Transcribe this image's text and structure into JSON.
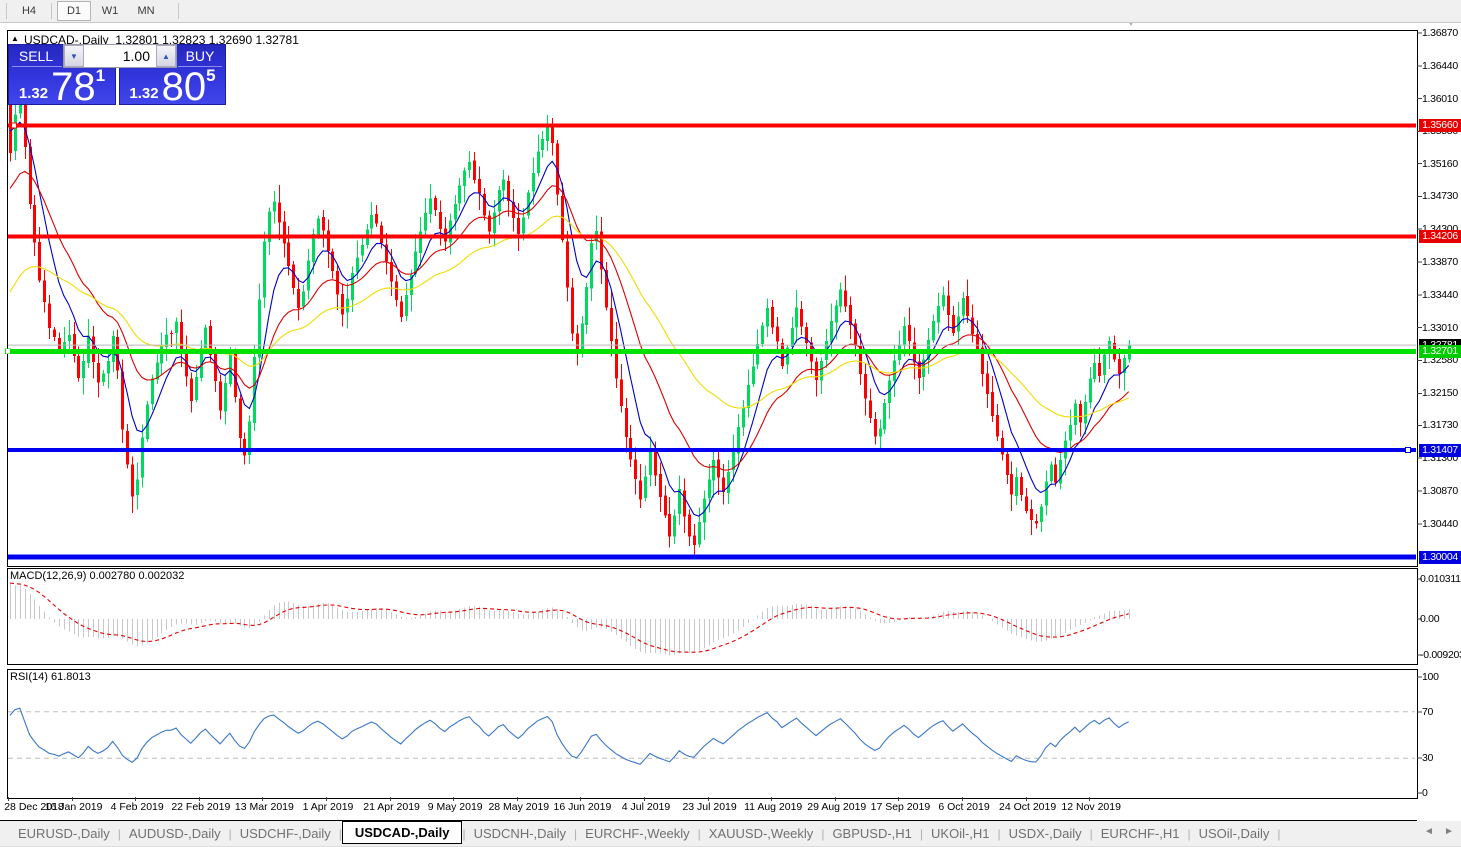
{
  "toolbar": {
    "timeframes": [
      {
        "label": "H4",
        "active": false
      },
      {
        "label": "D1",
        "active": true
      },
      {
        "label": "W1",
        "active": false
      },
      {
        "label": "MN",
        "active": false
      }
    ]
  },
  "chart_header": {
    "collapse_arrow": "▲",
    "shift_marker": "▼"
  },
  "trade_panel": {
    "sell_label": "SELL",
    "buy_label": "BUY",
    "volume": "1.00",
    "spinner_down": "▼",
    "spinner_up": "▲",
    "sell_price": {
      "big": "1.32",
      "main": "78",
      "sup": "1"
    },
    "buy_price": {
      "big": "1.32",
      "main": "80",
      "sup": "5"
    }
  },
  "chart_data": {
    "type": "candlestick",
    "title": "USDCAD-,Daily",
    "ohlc_display": "1.32801 1.32823 1.32690 1.32781",
    "up_color": "#00DA5E",
    "down_color": "#FF0000",
    "price_ticks": [
      "1.36870",
      "1.36440",
      "1.36010",
      "1.35580",
      "1.35160",
      "1.34730",
      "1.34300",
      "1.33870",
      "1.33440",
      "1.33010",
      "1.32580",
      "1.32150",
      "1.31730",
      "1.31300",
      "1.30870",
      "1.30440"
    ],
    "levels": [
      {
        "value": "1.35660",
        "price": 1.3566,
        "color": "#FF0000",
        "label_bg": "#E60000",
        "thickness": 4
      },
      {
        "value": "1.34206",
        "price": 1.34206,
        "color": "#FF0000",
        "label_bg": "#E60000",
        "thickness": 4
      },
      {
        "value": "1.31407",
        "price": 1.31407,
        "color": "#0000F0",
        "label_bg": "#0000E0",
        "thickness": 4
      },
      {
        "value": "1.30004",
        "price": 1.30004,
        "color": "#0000F0",
        "label_bg": "#0000E0",
        "thickness": 5
      },
      {
        "value": "1.32701",
        "price": 1.32701,
        "color": "#00E100",
        "label_bg": "#00CC00",
        "thickness": 5
      }
    ],
    "bid": {
      "value": "1.32781",
      "price": 1.32781,
      "line_color": "#B8B8B8",
      "label_bg": "#000000"
    },
    "moving_averages": [
      {
        "period": 8,
        "color": "#0000C8"
      },
      {
        "period": 20,
        "color": "#DC0000"
      },
      {
        "period": 45,
        "color": "#EEDC00"
      }
    ],
    "prehistory": {
      "days": 45,
      "start": 1.2975,
      "slope": 0.00145,
      "wiggle_amp": 0.0018,
      "wiggle_freq": 0.9
    },
    "close_anchors": [
      [
        0,
        1.353
      ],
      [
        1,
        1.3575
      ],
      [
        2,
        1.3595
      ],
      [
        3,
        1.3535
      ],
      [
        4,
        1.3465
      ],
      [
        5,
        1.3415
      ],
      [
        6,
        1.336
      ],
      [
        8,
        1.33
      ],
      [
        10,
        1.3268
      ],
      [
        12,
        1.329
      ],
      [
        13,
        1.326
      ],
      [
        14,
        1.3238
      ],
      [
        15,
        1.3262
      ],
      [
        16,
        1.3288
      ],
      [
        17,
        1.3258
      ],
      [
        18,
        1.323
      ],
      [
        20,
        1.3258
      ],
      [
        21,
        1.3288
      ],
      [
        22,
        1.324
      ],
      [
        23,
        1.317
      ],
      [
        24,
        1.3125
      ],
      [
        25,
        1.3082
      ],
      [
        26,
        1.3105
      ],
      [
        27,
        1.3152
      ],
      [
        28,
        1.3202
      ],
      [
        30,
        1.3258
      ],
      [
        32,
        1.3288
      ],
      [
        34,
        1.3305
      ],
      [
        35,
        1.3268
      ],
      [
        36,
        1.3232
      ],
      [
        37,
        1.32
      ],
      [
        38,
        1.3235
      ],
      [
        39,
        1.3272
      ],
      [
        40,
        1.3305
      ],
      [
        41,
        1.327
      ],
      [
        42,
        1.323
      ],
      [
        43,
        1.319
      ],
      [
        44,
        1.3228
      ],
      [
        45,
        1.3262
      ],
      [
        46,
        1.3215
      ],
      [
        47,
        1.316
      ],
      [
        48,
        1.3132
      ],
      [
        49,
        1.318
      ],
      [
        50,
        1.3262
      ],
      [
        51,
        1.3335
      ],
      [
        52,
        1.341
      ],
      [
        53,
        1.3455
      ],
      [
        54,
        1.347
      ],
      [
        55,
        1.344
      ],
      [
        56,
        1.3408
      ],
      [
        57,
        1.338
      ],
      [
        58,
        1.3352
      ],
      [
        59,
        1.333
      ],
      [
        60,
        1.3352
      ],
      [
        61,
        1.3388
      ],
      [
        62,
        1.342
      ],
      [
        63,
        1.3445
      ],
      [
        64,
        1.343
      ],
      [
        65,
        1.3402
      ],
      [
        66,
        1.3372
      ],
      [
        67,
        1.3345
      ],
      [
        68,
        1.3322
      ],
      [
        69,
        1.3342
      ],
      [
        70,
        1.3368
      ],
      [
        71,
        1.3392
      ],
      [
        72,
        1.3412
      ],
      [
        73,
        1.3432
      ],
      [
        74,
        1.345
      ],
      [
        75,
        1.3435
      ],
      [
        76,
        1.341
      ],
      [
        77,
        1.3385
      ],
      [
        78,
        1.336
      ],
      [
        79,
        1.3338
      ],
      [
        80,
        1.3318
      ],
      [
        81,
        1.3342
      ],
      [
        82,
        1.337
      ],
      [
        83,
        1.3398
      ],
      [
        84,
        1.3425
      ],
      [
        85,
        1.3452
      ],
      [
        86,
        1.3475
      ],
      [
        87,
        1.3458
      ],
      [
        88,
        1.3435
      ],
      [
        89,
        1.3415
      ],
      [
        90,
        1.344
      ],
      [
        91,
        1.3468
      ],
      [
        92,
        1.3492
      ],
      [
        93,
        1.351
      ],
      [
        94,
        1.352
      ],
      [
        95,
        1.3498
      ],
      [
        96,
        1.3472
      ],
      [
        97,
        1.3448
      ],
      [
        98,
        1.3432
      ],
      [
        99,
        1.3452
      ],
      [
        100,
        1.3478
      ],
      [
        101,
        1.3495
      ],
      [
        102,
        1.347
      ],
      [
        103,
        1.3445
      ],
      [
        104,
        1.3425
      ],
      [
        105,
        1.3448
      ],
      [
        106,
        1.3478
      ],
      [
        107,
        1.3505
      ],
      [
        108,
        1.3528
      ],
      [
        109,
        1.3548
      ],
      [
        110,
        1.356
      ],
      [
        111,
        1.354
      ],
      [
        112,
        1.348
      ],
      [
        113,
        1.3415
      ],
      [
        114,
        1.335
      ],
      [
        115,
        1.3292
      ],
      [
        116,
        1.327
      ],
      [
        117,
        1.3305
      ],
      [
        118,
        1.3355
      ],
      [
        119,
        1.3408
      ],
      [
        120,
        1.3428
      ],
      [
        121,
        1.338
      ],
      [
        122,
        1.333
      ],
      [
        123,
        1.3282
      ],
      [
        124,
        1.3238
      ],
      [
        125,
        1.3198
      ],
      [
        126,
        1.3162
      ],
      [
        127,
        1.313
      ],
      [
        128,
        1.3102
      ],
      [
        129,
        1.3078
      ],
      [
        130,
        1.3108
      ],
      [
        131,
        1.3135
      ],
      [
        132,
        1.3108
      ],
      [
        133,
        1.3078
      ],
      [
        134,
        1.3052
      ],
      [
        135,
        1.3032
      ],
      [
        136,
        1.3058
      ],
      [
        137,
        1.3088
      ],
      [
        138,
        1.3058
      ],
      [
        139,
        1.3028
      ],
      [
        140,
        1.3016
      ],
      [
        141,
        1.3042
      ],
      [
        142,
        1.3072
      ],
      [
        143,
        1.3102
      ],
      [
        144,
        1.3128
      ],
      [
        145,
        1.3108
      ],
      [
        146,
        1.3082
      ],
      [
        147,
        1.3112
      ],
      [
        148,
        1.3142
      ],
      [
        149,
        1.3172
      ],
      [
        150,
        1.32
      ],
      [
        151,
        1.3228
      ],
      [
        152,
        1.3255
      ],
      [
        153,
        1.3282
      ],
      [
        154,
        1.3308
      ],
      [
        155,
        1.333
      ],
      [
        156,
        1.3305
      ],
      [
        157,
        1.3278
      ],
      [
        158,
        1.3252
      ],
      [
        159,
        1.3278
      ],
      [
        160,
        1.3305
      ],
      [
        161,
        1.333
      ],
      [
        162,
        1.3305
      ],
      [
        163,
        1.3278
      ],
      [
        164,
        1.3252
      ],
      [
        165,
        1.3228
      ],
      [
        166,
        1.3255
      ],
      [
        167,
        1.3282
      ],
      [
        168,
        1.3308
      ],
      [
        169,
        1.333
      ],
      [
        170,
        1.3352
      ],
      [
        171,
        1.333
      ],
      [
        172,
        1.3302
      ],
      [
        173,
        1.3272
      ],
      [
        174,
        1.3242
      ],
      [
        175,
        1.3212
      ],
      [
        176,
        1.3182
      ],
      [
        177,
        1.3155
      ],
      [
        178,
        1.3172
      ],
      [
        179,
        1.3202
      ],
      [
        180,
        1.3232
      ],
      [
        181,
        1.3258
      ],
      [
        182,
        1.3282
      ],
      [
        183,
        1.3305
      ],
      [
        184,
        1.3282
      ],
      [
        185,
        1.3258
      ],
      [
        186,
        1.3235
      ],
      [
        187,
        1.3258
      ],
      [
        188,
        1.3282
      ],
      [
        189,
        1.3305
      ],
      [
        190,
        1.3328
      ],
      [
        191,
        1.3345
      ],
      [
        192,
        1.3322
      ],
      [
        193,
        1.3295
      ],
      [
        194,
        1.3318
      ],
      [
        195,
        1.3342
      ],
      [
        196,
        1.3318
      ],
      [
        197,
        1.3292
      ],
      [
        198,
        1.3268
      ],
      [
        199,
        1.3242
      ],
      [
        200,
        1.3215
      ],
      [
        201,
        1.3188
      ],
      [
        202,
        1.3162
      ],
      [
        203,
        1.3135
      ],
      [
        204,
        1.3108
      ],
      [
        205,
        1.3082
      ],
      [
        206,
        1.3108
      ],
      [
        207,
        1.3082
      ],
      [
        208,
        1.3058
      ],
      [
        209,
        1.3048
      ],
      [
        210,
        1.3042
      ],
      [
        211,
        1.3068
      ],
      [
        212,
        1.3095
      ],
      [
        213,
        1.3122
      ],
      [
        214,
        1.3098
      ],
      [
        215,
        1.3125
      ],
      [
        216,
        1.3152
      ],
      [
        217,
        1.3178
      ],
      [
        218,
        1.3205
      ],
      [
        219,
        1.3182
      ],
      [
        220,
        1.3208
      ],
      [
        221,
        1.3232
      ],
      [
        222,
        1.3255
      ],
      [
        223,
        1.3238
      ],
      [
        224,
        1.3262
      ],
      [
        225,
        1.3285
      ],
      [
        226,
        1.3262
      ],
      [
        227,
        1.324
      ],
      [
        228,
        1.3262
      ],
      [
        229,
        1.3278
      ]
    ],
    "macd": {
      "name": "MACD(12,26,9)",
      "value1": "0.002780",
      "value2": "0.002032",
      "fast": 12,
      "slow": 26,
      "signal": 9,
      "axis_labels": [
        "0.010311",
        "0.00",
        "-0.009203"
      ],
      "histogram_color": "#C8C8C8",
      "signal_color": "#E60000"
    },
    "rsi": {
      "name": "RSI(14)",
      "value": "61.8013",
      "period": 14,
      "axis_labels": [
        "100",
        "70",
        "30",
        "0"
      ],
      "level_lines": [
        70,
        30
      ],
      "line_color": "#3C78C8"
    },
    "date_labels": [
      "28 Dec 2018",
      "16 Jan 2019",
      "4 Feb 2019",
      "22 Feb 2019",
      "13 Mar 2019",
      "1 Apr 2019",
      "21 Apr 2019",
      "9 May 2019",
      "28 May 2019",
      "16 Jun 2019",
      "4 Jul 2019",
      "23 Jul 2019",
      "11 Aug 2019",
      "29 Aug 2019",
      "17 Sep 2019",
      "6 Oct 2019",
      "24 Oct 2019",
      "12 Nov 2019"
    ]
  },
  "tabs": {
    "items": [
      {
        "label": "EURUSD-,Daily",
        "active": false
      },
      {
        "label": "AUDUSD-,Daily",
        "active": false
      },
      {
        "label": "USDCHF-,Daily",
        "active": false
      },
      {
        "label": "USDCAD-,Daily",
        "active": true
      },
      {
        "label": "USDCNH-,Daily",
        "active": false
      },
      {
        "label": "EURCHF-,Weekly",
        "active": false
      },
      {
        "label": "XAUUSD-,Weekly",
        "active": false
      },
      {
        "label": "GBPUSD-,H1",
        "active": false
      },
      {
        "label": "UKOil-,H1",
        "active": false
      },
      {
        "label": "USDX-,Daily",
        "active": false
      },
      {
        "label": "EURCHF-,H1",
        "active": false
      },
      {
        "label": "USOil-,Daily",
        "active": false
      }
    ],
    "scroll_left": "◄",
    "scroll_right": "►"
  }
}
